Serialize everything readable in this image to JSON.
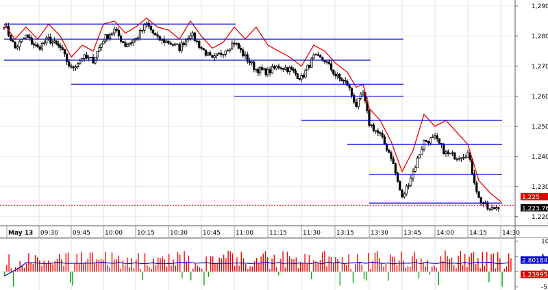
{
  "chart_data": {
    "type": "candlestick",
    "main_panel": {
      "y_axis_labels": [
        "1,290",
        "1,280",
        "1,270",
        "1,260",
        "1,250",
        "1,240",
        "1,230",
        "1,220"
      ],
      "ylim": [
        1217,
        1292
      ],
      "price_tags": [
        {
          "label": "1,225",
          "value": 1225.2,
          "color": "#e00000"
        },
        {
          "label": "1,223.76",
          "value": 1223.76,
          "color": "#000000"
        }
      ],
      "last_price": 1223.76,
      "horizontal_levels": [
        {
          "value": 1284.0,
          "x_start": "09:15",
          "x_end": "11:00"
        },
        {
          "value": 1279.0,
          "x_start": "09:15",
          "x_end": "13:45"
        },
        {
          "value": 1272.0,
          "x_start": "09:15",
          "x_end": "13:30"
        },
        {
          "value": 1264.0,
          "x_start": "09:45",
          "x_end": "13:45"
        },
        {
          "value": 1260.0,
          "x_start": "11:00",
          "x_end": "13:45"
        },
        {
          "value": 1252.0,
          "x_start": "11:30",
          "x_end": "14:30"
        },
        {
          "value": 1244.0,
          "x_start": "13:15",
          "x_end": "14:30"
        },
        {
          "value": 1234.0,
          "x_start": "13:30",
          "x_end": "14:30"
        },
        {
          "value": 1224.5,
          "x_start": "13:30",
          "x_end": "14:30"
        }
      ],
      "price_path": {
        "times": [
          "09:15",
          "09:20",
          "09:25",
          "09:30",
          "09:35",
          "09:40",
          "09:45",
          "09:50",
          "09:55",
          "10:00",
          "10:05",
          "10:10",
          "10:15",
          "10:20",
          "10:25",
          "10:30",
          "10:35",
          "10:40",
          "10:45",
          "10:50",
          "10:55",
          "11:00",
          "11:05",
          "11:10",
          "11:15",
          "11:20",
          "11:25",
          "11:30",
          "13:00",
          "13:05",
          "13:10",
          "13:15",
          "13:20",
          "13:25",
          "13:30",
          "13:35",
          "13:40",
          "13:45",
          "13:50",
          "13:55",
          "14:00",
          "14:05",
          "14:10",
          "14:15",
          "14:20",
          "14:25",
          "14:30"
        ],
        "close": [
          1284,
          1276,
          1280,
          1276,
          1279,
          1276,
          1269,
          1273,
          1272,
          1279,
          1282,
          1277,
          1279,
          1284,
          1279,
          1278,
          1276,
          1281,
          1276,
          1272,
          1275,
          1278,
          1273,
          1269,
          1268,
          1270,
          1269,
          1266,
          1273,
          1272,
          1267,
          1264,
          1257,
          1261,
          1251,
          1247,
          1240,
          1226,
          1235,
          1245,
          1246,
          1241,
          1240,
          1241,
          1226,
          1222,
          1224
        ]
      },
      "red_line": [
        1284,
        1279,
        1283,
        1279,
        1284,
        1280,
        1273,
        1277,
        1275,
        1284,
        1285,
        1281,
        1283,
        1286,
        1283,
        1282,
        1279,
        1285,
        1280,
        1276,
        1278,
        1283,
        1279,
        1283,
        1277,
        1275,
        1273,
        1270,
        1277,
        1275,
        1271,
        1268,
        1263,
        1264,
        1256,
        1252,
        1245,
        1235,
        1242,
        1254,
        1250,
        1252,
        1248,
        1244,
        1232,
        1228,
        1225
      ]
    },
    "x_axis_labels": [
      "May 13",
      "09:30",
      "09:45",
      "10:00",
      "10:15",
      "10:30",
      "10:45",
      "11:00",
      "11:15",
      "11:30",
      "13:15",
      "13:30",
      "13:45",
      "14:00",
      "14:15",
      "14:30"
    ],
    "volume_panel": {
      "y_axis_labels": [
        "10",
        "5",
        "0",
        "-5"
      ],
      "ylim": [
        -6,
        11
      ],
      "tags": [
        {
          "label": "2.80184",
          "value": 2.80184,
          "color": "#0000cc"
        },
        {
          "label": "1.23995",
          "value": 1.23995,
          "color": "#e00000"
        }
      ]
    }
  }
}
